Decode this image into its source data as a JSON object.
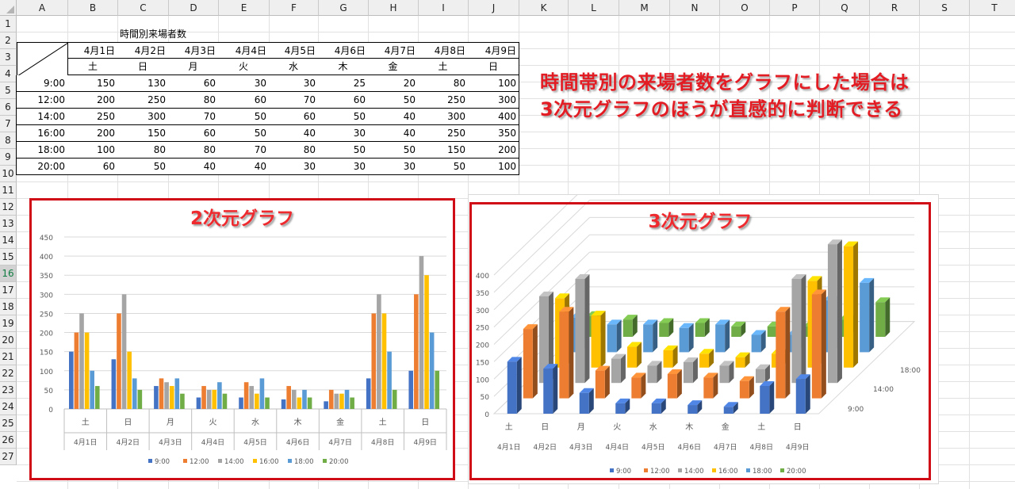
{
  "columns": [
    "A",
    "B",
    "C",
    "D",
    "E",
    "F",
    "G",
    "H",
    "I",
    "J",
    "K",
    "L",
    "M",
    "N",
    "O",
    "P",
    "Q",
    "R",
    "S",
    "T"
  ],
  "rows": [
    "1",
    "2",
    "3",
    "4",
    "5",
    "6",
    "7",
    "8",
    "9",
    "10",
    "11",
    "12",
    "13",
    "14",
    "15",
    "16",
    "17",
    "18",
    "19",
    "20",
    "21",
    "22",
    "23",
    "24",
    "25",
    "26",
    "27"
  ],
  "selected_row": "16",
  "table": {
    "title": "時間別来場者数",
    "dates": [
      "4月1日",
      "4月2日",
      "4月3日",
      "4月4日",
      "4月5日",
      "4月6日",
      "4月7日",
      "4月8日",
      "4月9日"
    ],
    "weekdays": [
      "土",
      "日",
      "月",
      "火",
      "水",
      "木",
      "金",
      "土",
      "日"
    ],
    "times": [
      "9:00",
      "12:00",
      "14:00",
      "16:00",
      "18:00",
      "20:00"
    ],
    "values": [
      [
        150,
        130,
        60,
        30,
        30,
        25,
        20,
        80,
        100
      ],
      [
        200,
        250,
        80,
        60,
        70,
        60,
        50,
        250,
        300
      ],
      [
        250,
        300,
        70,
        50,
        60,
        50,
        40,
        300,
        400
      ],
      [
        200,
        150,
        60,
        50,
        40,
        30,
        40,
        250,
        350
      ],
      [
        100,
        80,
        80,
        70,
        80,
        50,
        50,
        150,
        200
      ],
      [
        60,
        50,
        40,
        40,
        30,
        30,
        30,
        50,
        100
      ]
    ]
  },
  "note": {
    "line1": "時間帯別の来場者数をグラフにした場合は",
    "line2": "3次元グラフのほうが直感的に判断できる"
  },
  "chart2d_title": "2次元グラフ",
  "chart3d_title": "3次元グラフ",
  "colors": {
    "series": [
      "#4472c4",
      "#ed7d31",
      "#a5a5a5",
      "#ffc000",
      "#5b9bd5",
      "#70ad47"
    ],
    "note_red": "#e31b23",
    "box_red": "#d00d16"
  },
  "chart_data": [
    {
      "type": "bar",
      "title": "2次元グラフ",
      "categories": [
        "土",
        "日",
        "月",
        "火",
        "水",
        "木",
        "金",
        "土",
        "日"
      ],
      "category_groups": [
        "4月1日",
        "4月2日",
        "4月3日",
        "4月4日",
        "4月5日",
        "4月6日",
        "4月7日",
        "4月8日",
        "4月9日"
      ],
      "series": [
        {
          "name": "9:00",
          "values": [
            150,
            130,
            60,
            30,
            30,
            25,
            20,
            80,
            100
          ]
        },
        {
          "name": "12:00",
          "values": [
            200,
            250,
            80,
            60,
            70,
            60,
            50,
            250,
            300
          ]
        },
        {
          "name": "14:00",
          "values": [
            250,
            300,
            70,
            50,
            60,
            50,
            40,
            300,
            400
          ]
        },
        {
          "name": "16:00",
          "values": [
            200,
            150,
            60,
            50,
            40,
            30,
            40,
            250,
            350
          ]
        },
        {
          "name": "18:00",
          "values": [
            100,
            80,
            80,
            70,
            80,
            50,
            50,
            150,
            200
          ]
        },
        {
          "name": "20:00",
          "values": [
            60,
            50,
            40,
            40,
            30,
            30,
            30,
            50,
            100
          ]
        }
      ],
      "yticks": [
        "0",
        "50",
        "100",
        "150",
        "200",
        "250",
        "300",
        "350",
        "400",
        "450"
      ],
      "ylim": [
        0,
        450
      ],
      "grid": true,
      "legend": "bottom"
    },
    {
      "type": "bar",
      "title": "3次元グラフ",
      "categories": [
        "土",
        "日",
        "月",
        "火",
        "水",
        "木",
        "金",
        "土",
        "日"
      ],
      "category_groups": [
        "4月1日",
        "4月2日",
        "4月3日",
        "4月4日",
        "4月5日",
        "4月6日",
        "4月7日",
        "4月8日",
        "4月9日"
      ],
      "series": [
        {
          "name": "9:00",
          "values": [
            150,
            130,
            60,
            30,
            30,
            25,
            20,
            80,
            100
          ]
        },
        {
          "name": "12:00",
          "values": [
            200,
            250,
            80,
            60,
            70,
            60,
            50,
            250,
            300
          ]
        },
        {
          "name": "14:00",
          "values": [
            250,
            300,
            70,
            50,
            60,
            50,
            40,
            300,
            400
          ]
        },
        {
          "name": "16:00",
          "values": [
            200,
            150,
            60,
            50,
            40,
            30,
            40,
            250,
            350
          ]
        },
        {
          "name": "18:00",
          "values": [
            100,
            80,
            80,
            70,
            80,
            50,
            50,
            150,
            200
          ]
        },
        {
          "name": "20:00",
          "values": [
            60,
            50,
            40,
            40,
            30,
            30,
            30,
            50,
            100
          ]
        }
      ],
      "depth_labels": [
        "9:00",
        "14:00",
        "18:00"
      ],
      "yticks": [
        "0",
        "50",
        "100",
        "150",
        "200",
        "250",
        "300",
        "350",
        "400"
      ],
      "ylim": [
        0,
        400
      ],
      "grid": true,
      "legend": "bottom"
    }
  ]
}
